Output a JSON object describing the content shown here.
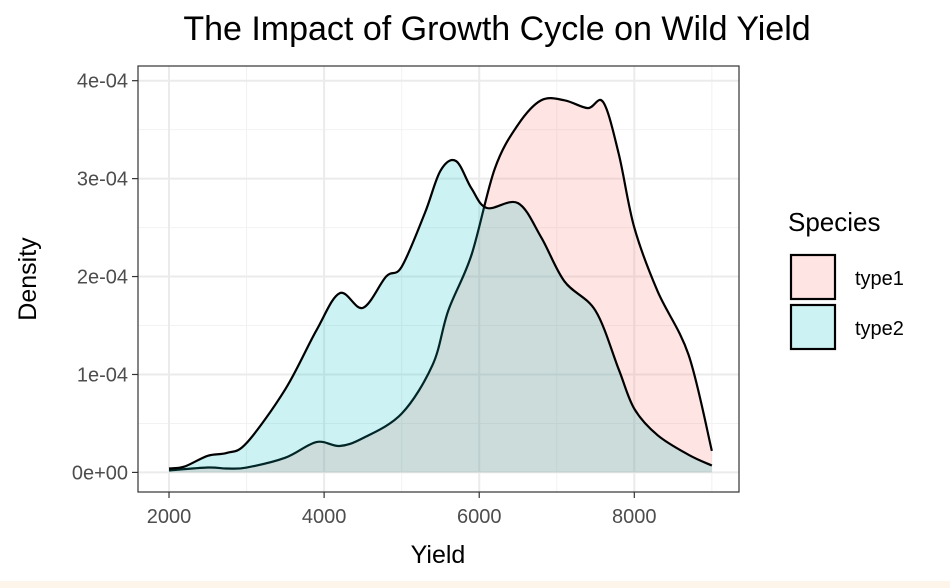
{
  "chart_data": {
    "type": "area",
    "title": "The Impact of Growth Cycle on Wild Yield",
    "xlabel": "Yield",
    "ylabel": "Density",
    "xlim": [
      1600,
      9350
    ],
    "ylim": [
      -2e-05,
      0.000415
    ],
    "x_ticks": [
      2000,
      4000,
      6000,
      8000
    ],
    "x_tick_labels": [
      "2000",
      "4000",
      "6000",
      "8000"
    ],
    "y_ticks": [
      0,
      0.0001,
      0.0002,
      0.0003,
      0.0004
    ],
    "y_tick_labels": [
      "0e+00",
      "1e-04",
      "2e-04",
      "3e-04",
      "4e-04"
    ],
    "grid": true,
    "legend": {
      "title": "Species",
      "position": "right"
    },
    "series": [
      {
        "name": "type1",
        "fill": "#F8766D",
        "x": [
          2000,
          2500,
          2750,
          3000,
          3500,
          3900,
          4200,
          4500,
          5000,
          5400,
          5600,
          5900,
          6200,
          6500,
          6800,
          7100,
          7400,
          7600,
          7800,
          8000,
          8300,
          8700,
          9000
        ],
        "y": [
          2e-06,
          5e-06,
          4e-06,
          5e-06,
          1.5e-05,
          3.1e-05,
          2.7e-05,
          3.5e-05,
          6e-05,
          0.00011,
          0.000165,
          0.000222,
          0.00031,
          0.000355,
          0.00038,
          0.00038,
          0.000372,
          0.000378,
          0.000325,
          0.00025,
          0.000185,
          0.00012,
          2.2e-05
        ]
      },
      {
        "name": "type2",
        "fill": "#00BFC4",
        "x": [
          2000,
          2200,
          2500,
          2750,
          3000,
          3500,
          3900,
          4200,
          4500,
          4800,
          5000,
          5300,
          5500,
          5700,
          5900,
          6100,
          6500,
          6800,
          7100,
          7500,
          7800,
          8000,
          8300,
          8700,
          9000
        ],
        "y": [
          4e-06,
          6e-06,
          1.7e-05,
          2e-05,
          3e-05,
          8.5e-05,
          0.000145,
          0.000183,
          0.000168,
          0.0002,
          0.00021,
          0.000265,
          0.000308,
          0.000318,
          0.00029,
          0.00027,
          0.000275,
          0.00024,
          0.000195,
          0.000165,
          0.000105,
          6.5e-05,
          3.8e-05,
          1.8e-05,
          7e-06
        ]
      }
    ]
  }
}
